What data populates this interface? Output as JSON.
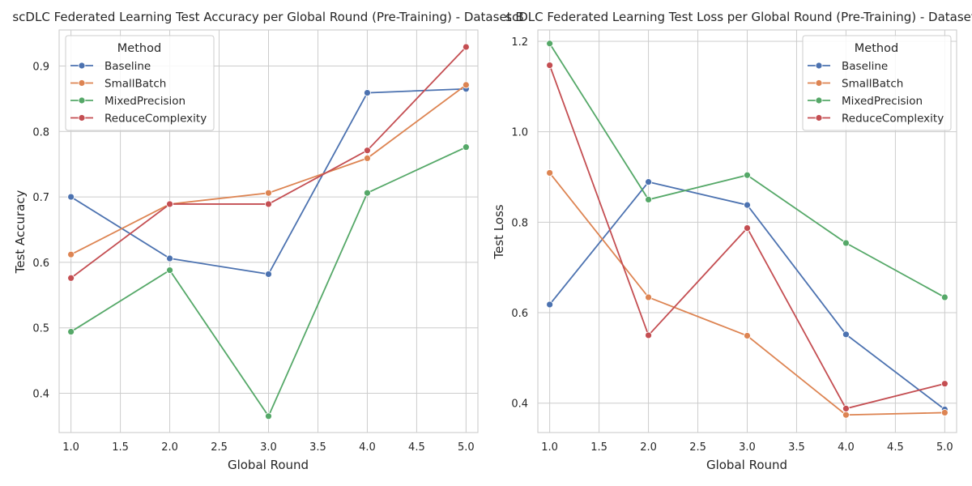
{
  "chart_data": [
    {
      "type": "line",
      "title": "scDLC Federated Learning Test Accuracy per Global Round (Pre-Training) - Dataset B",
      "xlabel": "Global Round",
      "ylabel": "Test Accuracy",
      "xlim": [
        0.88,
        5.12
      ],
      "ylim": [
        0.34,
        0.955
      ],
      "xticks": [
        1.0,
        1.5,
        2.0,
        2.5,
        3.0,
        3.5,
        4.0,
        4.5,
        5.0
      ],
      "xtick_labels": [
        "1.0",
        "1.5",
        "2.0",
        "2.5",
        "3.0",
        "3.5",
        "4.0",
        "4.5",
        "5.0"
      ],
      "yticks": [
        0.4,
        0.5,
        0.6,
        0.7,
        0.8,
        0.9
      ],
      "ytick_labels": [
        "0.4",
        "0.5",
        "0.6",
        "0.7",
        "0.8",
        "0.9"
      ],
      "grid": true,
      "legend": {
        "title": "Method",
        "placement": "upper-left"
      },
      "x": [
        1,
        2,
        3,
        4,
        5
      ],
      "series": [
        {
          "name": "Baseline",
          "color": "#4C72B0",
          "values": [
            0.7,
            0.606,
            0.582,
            0.859,
            0.865
          ]
        },
        {
          "name": "SmallBatch",
          "color": "#DD8452",
          "values": [
            0.612,
            0.689,
            0.706,
            0.759,
            0.871
          ]
        },
        {
          "name": "MixedPrecision",
          "color": "#55A868",
          "values": [
            0.494,
            0.588,
            0.365,
            0.706,
            0.776
          ]
        },
        {
          "name": "ReduceComplexity",
          "color": "#C44E52",
          "values": [
            0.576,
            0.689,
            0.689,
            0.771,
            0.929
          ]
        }
      ]
    },
    {
      "type": "line",
      "title": "scDLC Federated Learning Test Loss per Global Round (Pre-Training) - Dataset B",
      "xlabel": "Global Round",
      "ylabel": "Test Loss",
      "xlim": [
        0.88,
        5.12
      ],
      "ylim": [
        0.335,
        1.225
      ],
      "xticks": [
        1.0,
        1.5,
        2.0,
        2.5,
        3.0,
        3.5,
        4.0,
        4.5,
        5.0
      ],
      "xtick_labels": [
        "1.0",
        "1.5",
        "2.0",
        "2.5",
        "3.0",
        "3.5",
        "4.0",
        "4.5",
        "5.0"
      ],
      "yticks": [
        0.4,
        0.6,
        0.8,
        1.0,
        1.2
      ],
      "ytick_labels": [
        "0.4",
        "0.6",
        "0.8",
        "1.0",
        "1.2"
      ],
      "grid": true,
      "legend": {
        "title": "Method",
        "placement": "upper-right"
      },
      "x": [
        1,
        2,
        3,
        4,
        5
      ],
      "series": [
        {
          "name": "Baseline",
          "color": "#4C72B0",
          "values": [
            0.618,
            0.889,
            0.838,
            0.552,
            0.386
          ]
        },
        {
          "name": "SmallBatch",
          "color": "#DD8452",
          "values": [
            0.909,
            0.634,
            0.549,
            0.374,
            0.379
          ]
        },
        {
          "name": "MixedPrecision",
          "color": "#55A868",
          "values": [
            1.195,
            0.85,
            0.904,
            0.754,
            0.634
          ]
        },
        {
          "name": "ReduceComplexity",
          "color": "#C44E52",
          "values": [
            1.147,
            0.55,
            0.787,
            0.388,
            0.443
          ]
        }
      ]
    }
  ]
}
